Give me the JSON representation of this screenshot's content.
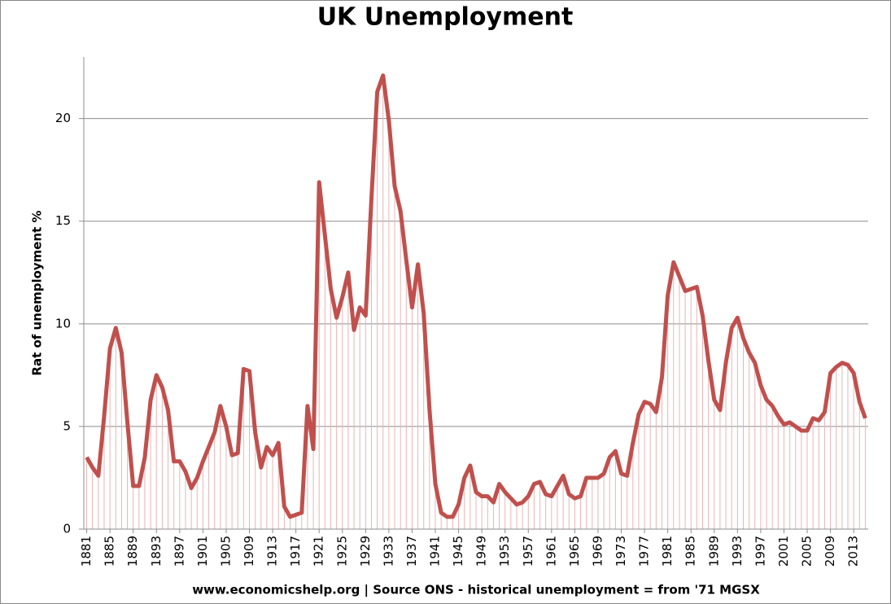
{
  "chart_data": {
    "type": "line",
    "title": "UK Unemployment",
    "y_label": "Rat of unemployment %",
    "x_label": "www.economicshelp.org | Source ONS - historical unemployment = from '71 MGSX",
    "x": [
      1881,
      1882,
      1883,
      1884,
      1885,
      1886,
      1887,
      1888,
      1889,
      1890,
      1891,
      1892,
      1893,
      1894,
      1895,
      1896,
      1897,
      1898,
      1899,
      1900,
      1901,
      1902,
      1903,
      1904,
      1905,
      1906,
      1907,
      1908,
      1909,
      1910,
      1911,
      1912,
      1913,
      1914,
      1915,
      1916,
      1917,
      1918,
      1919,
      1920,
      1921,
      1922,
      1923,
      1924,
      1925,
      1926,
      1927,
      1928,
      1929,
      1930,
      1931,
      1932,
      1933,
      1934,
      1935,
      1936,
      1937,
      1938,
      1939,
      1940,
      1941,
      1942,
      1943,
      1944,
      1945,
      1946,
      1947,
      1948,
      1949,
      1950,
      1951,
      1952,
      1953,
      1954,
      1955,
      1956,
      1957,
      1958,
      1959,
      1960,
      1961,
      1962,
      1963,
      1964,
      1965,
      1966,
      1967,
      1968,
      1969,
      1970,
      1971,
      1972,
      1973,
      1974,
      1975,
      1976,
      1977,
      1978,
      1979,
      1980,
      1981,
      1982,
      1983,
      1984,
      1985,
      1986,
      1987,
      1988,
      1989,
      1990,
      1991,
      1992,
      1993,
      1994,
      1995,
      1996,
      1997,
      1998,
      1999,
      2000,
      2001,
      2002,
      2003,
      2004,
      2005,
      2006,
      2007,
      2008,
      2009,
      2010,
      2011,
      2012,
      2013,
      2014,
      2015
    ],
    "values": [
      3.5,
      3.0,
      2.6,
      5.5,
      8.8,
      9.8,
      8.6,
      5.2,
      2.1,
      2.1,
      3.5,
      6.3,
      7.5,
      6.9,
      5.8,
      3.3,
      3.3,
      2.8,
      2.0,
      2.5,
      3.3,
      4.0,
      4.7,
      6.0,
      5.0,
      3.6,
      3.7,
      7.8,
      7.7,
      4.7,
      3.0,
      4.0,
      3.6,
      4.2,
      1.1,
      0.6,
      0.7,
      0.8,
      6.0,
      3.9,
      16.9,
      14.3,
      11.7,
      10.3,
      11.3,
      12.5,
      9.7,
      10.8,
      10.4,
      16.1,
      21.3,
      22.1,
      19.9,
      16.7,
      15.5,
      13.1,
      10.8,
      12.9,
      10.5,
      5.8,
      2.2,
      0.8,
      0.6,
      0.6,
      1.2,
      2.5,
      3.1,
      1.8,
      1.6,
      1.6,
      1.3,
      2.2,
      1.8,
      1.5,
      1.2,
      1.3,
      1.6,
      2.2,
      2.3,
      1.7,
      1.6,
      2.1,
      2.6,
      1.7,
      1.5,
      1.6,
      2.5,
      2.5,
      2.5,
      2.7,
      3.5,
      3.8,
      2.7,
      2.6,
      4.2,
      5.6,
      6.2,
      6.1,
      5.7,
      7.4,
      11.4,
      13.0,
      12.3,
      11.6,
      11.7,
      11.8,
      10.4,
      8.2,
      6.3,
      5.8,
      8.1,
      9.8,
      10.3,
      9.3,
      8.6,
      8.1,
      7.0,
      6.3,
      6.0,
      5.5,
      5.1,
      5.2,
      5.0,
      4.8,
      4.8,
      5.4,
      5.3,
      5.7,
      7.6,
      7.9,
      8.1,
      8.0,
      7.6,
      6.2,
      5.4
    ],
    "color": "#c0504d",
    "drop_line_color": "#eab4b4",
    "xlim": [
      1880.5,
      2015.5
    ],
    "xticks": [
      1881,
      1885,
      1889,
      1893,
      1897,
      1901,
      1905,
      1909,
      1913,
      1917,
      1921,
      1925,
      1929,
      1933,
      1937,
      1941,
      1945,
      1949,
      1953,
      1957,
      1961,
      1965,
      1969,
      1973,
      1977,
      1981,
      1985,
      1989,
      1993,
      1997,
      2001,
      2005,
      2009,
      2013
    ],
    "ylim": [
      0,
      23
    ],
    "yticks": [
      0,
      5,
      10,
      15,
      20
    ],
    "grid": true
  }
}
